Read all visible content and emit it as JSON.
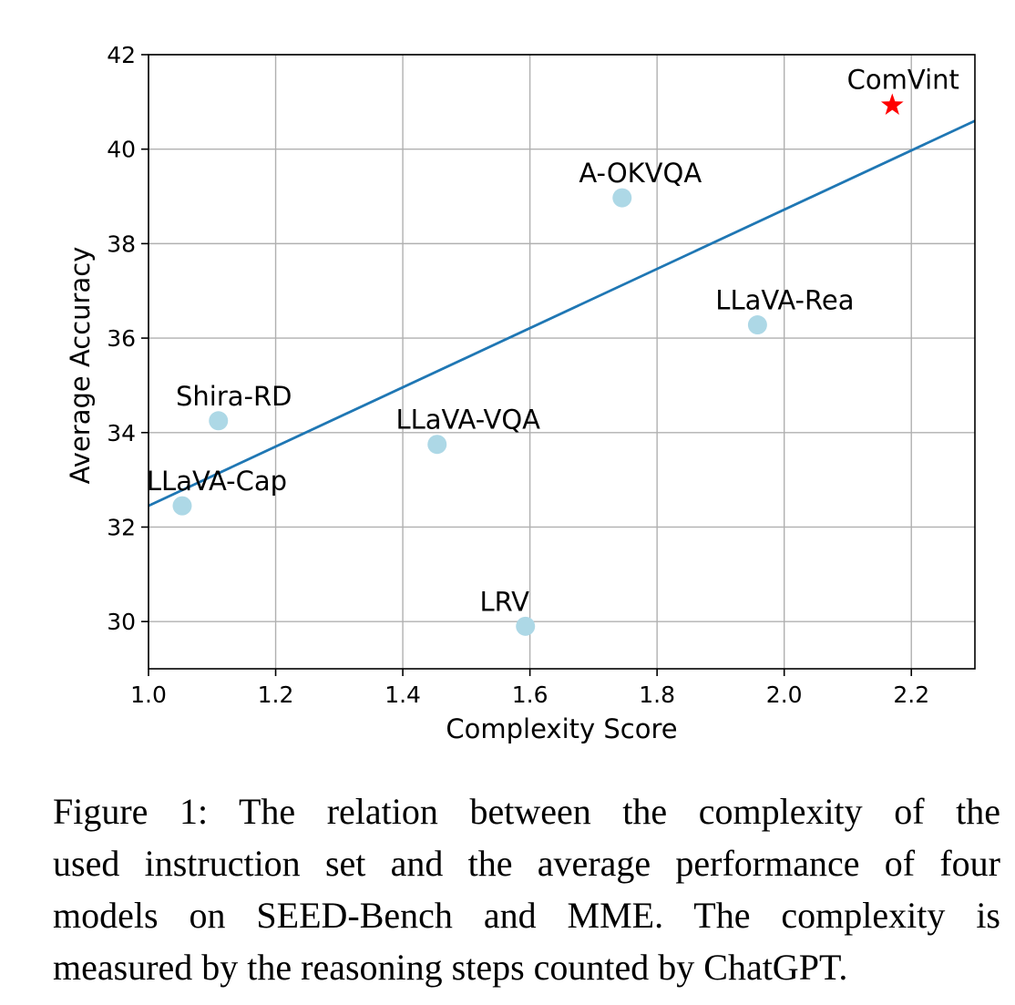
{
  "chart_data": {
    "type": "scatter",
    "xlabel": "Complexity Score",
    "ylabel": "Average Accuracy",
    "xlim": [
      1.0,
      2.3
    ],
    "ylim": [
      29.0,
      42.0
    ],
    "xticks": [
      "1.0",
      "1.2",
      "1.4",
      "1.6",
      "1.8",
      "2.0",
      "2.2"
    ],
    "yticks": [
      "30",
      "32",
      "34",
      "36",
      "38",
      "40",
      "42"
    ],
    "xtick_values": [
      1.0,
      1.2,
      1.4,
      1.6,
      1.8,
      2.0,
      2.2
    ],
    "ytick_values": [
      30,
      32,
      34,
      36,
      38,
      40,
      42
    ],
    "grid": true,
    "points": [
      {
        "label": "LLaVA-Cap",
        "x": 1.053,
        "y": 32.45,
        "marker": "circle",
        "color": "#add8e6"
      },
      {
        "label": "Shira-RD",
        "x": 1.11,
        "y": 34.25,
        "marker": "circle",
        "color": "#add8e6"
      },
      {
        "label": "LLaVA-VQA",
        "x": 1.454,
        "y": 33.75,
        "marker": "circle",
        "color": "#add8e6"
      },
      {
        "label": "LRV",
        "x": 1.593,
        "y": 29.9,
        "marker": "circle",
        "color": "#add8e6"
      },
      {
        "label": "A-OKVQA",
        "x": 1.745,
        "y": 38.97,
        "marker": "circle",
        "color": "#add8e6"
      },
      {
        "label": "LLaVA-Rea",
        "x": 1.958,
        "y": 36.28,
        "marker": "circle",
        "color": "#add8e6"
      },
      {
        "label": "ComVint",
        "x": 2.17,
        "y": 40.93,
        "marker": "star",
        "color": "#ff0000"
      }
    ],
    "fit_line": {
      "x": [
        1.0,
        2.3
      ],
      "y": [
        32.45,
        40.6
      ],
      "color": "#1f77b4"
    }
  },
  "caption": {
    "lines": [
      "Figure 1: The relation between the complexity of the",
      "used instruction set and the average performance of four",
      "models on SEED-Bench and MME. The complexity is",
      "measured by the reasoning steps counted by ChatGPT."
    ]
  }
}
